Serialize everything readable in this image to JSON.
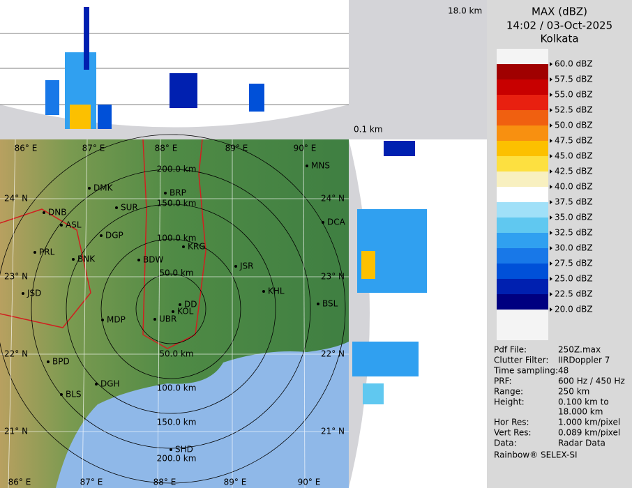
{
  "header": {
    "title": "MAX (dBZ)",
    "time": "14:02 / 03-Oct-2025",
    "site": "Kolkata"
  },
  "profile_labels": {
    "top_height": "18.0 km",
    "bottom_height": "0.1 km"
  },
  "legend": [
    {
      "label": "60.0 dBZ",
      "color": "#f4f4f4"
    },
    {
      "label": "57.5 dBZ",
      "color": "#a00000"
    },
    {
      "label": "55.0 dBZ",
      "color": "#c80000"
    },
    {
      "label": "52.5 dBZ",
      "color": "#e82010"
    },
    {
      "label": "50.0 dBZ",
      "color": "#f06010"
    },
    {
      "label": "47.5 dBZ",
      "color": "#f89010"
    },
    {
      "label": "45.0 dBZ",
      "color": "#fcc000"
    },
    {
      "label": "42.5 dBZ",
      "color": "#fde040"
    },
    {
      "label": "40.0 dBZ",
      "color": "#f8f0c0"
    },
    {
      "label": "37.5 dBZ",
      "color": "#ffffff"
    },
    {
      "label": "35.0 dBZ",
      "color": "#a0e0f8"
    },
    {
      "label": "32.5 dBZ",
      "color": "#60c8f0"
    },
    {
      "label": "30.0 dBZ",
      "color": "#30a0f0"
    },
    {
      "label": "27.5 dBZ",
      "color": "#1878e8"
    },
    {
      "label": "25.0 dBZ",
      "color": "#0050d8"
    },
    {
      "label": "22.5 dBZ",
      "color": "#0020b0"
    },
    {
      "label": "20.0 dBZ",
      "color": "#000080"
    }
  ],
  "info": [
    {
      "key": "Pdf File:",
      "value": [
        "250Z.max"
      ]
    },
    {
      "key": "Clutter Filter:",
      "value": [
        "IIRDoppler 7"
      ]
    },
    {
      "key": "Time sampling:",
      "value": [
        "48"
      ]
    },
    {
      "key": "PRF:",
      "value": [
        "600 Hz / 450 Hz"
      ]
    },
    {
      "key": "Range:",
      "value": [
        "250 km"
      ]
    },
    {
      "key": "Height:",
      "value": [
        "0.100 km to",
        "18.000 km"
      ]
    },
    {
      "key": "Hor Res:",
      "value": [
        "1.000 km/pixel"
      ]
    },
    {
      "key": "Vert Res:",
      "value": [
        "0.089 km/pixel"
      ]
    },
    {
      "key": "Data:",
      "value": [
        "Radar Data"
      ]
    }
  ],
  "footer": "Rainbow® SELEX-SI",
  "map": {
    "lon_labels_top": [
      "86° E",
      "87° E",
      "88° E",
      "89° E",
      "90° E"
    ],
    "lon_labels_bottom": [
      "86° E",
      "87° E",
      "88° E",
      "89° E",
      "90° E"
    ],
    "lat_labels_left": [
      "24° N",
      "23° N",
      "22° N",
      "21° N"
    ],
    "lat_labels_right": [
      "24° N",
      "23° N",
      "22° N",
      "21° N"
    ],
    "range_labels_north": [
      "200.0 km",
      "150.0 km",
      "100.0 km",
      "50.0 km"
    ],
    "range_labels_south": [
      "50.0 km",
      "100.0 km",
      "150.0 km",
      "200.0 km"
    ],
    "cities": [
      "MNS",
      "DMK",
      "BRP",
      "SUR",
      "DNB",
      "ASL",
      "DGP",
      "DCA",
      "KRG",
      "PRL",
      "BNK",
      "BDW",
      "JSR",
      "KHL",
      "JSD",
      "DD",
      "KOL",
      "UBR",
      "BSL",
      "MDP",
      "BPD",
      "DGH",
      "BLS",
      "SHD"
    ]
  }
}
